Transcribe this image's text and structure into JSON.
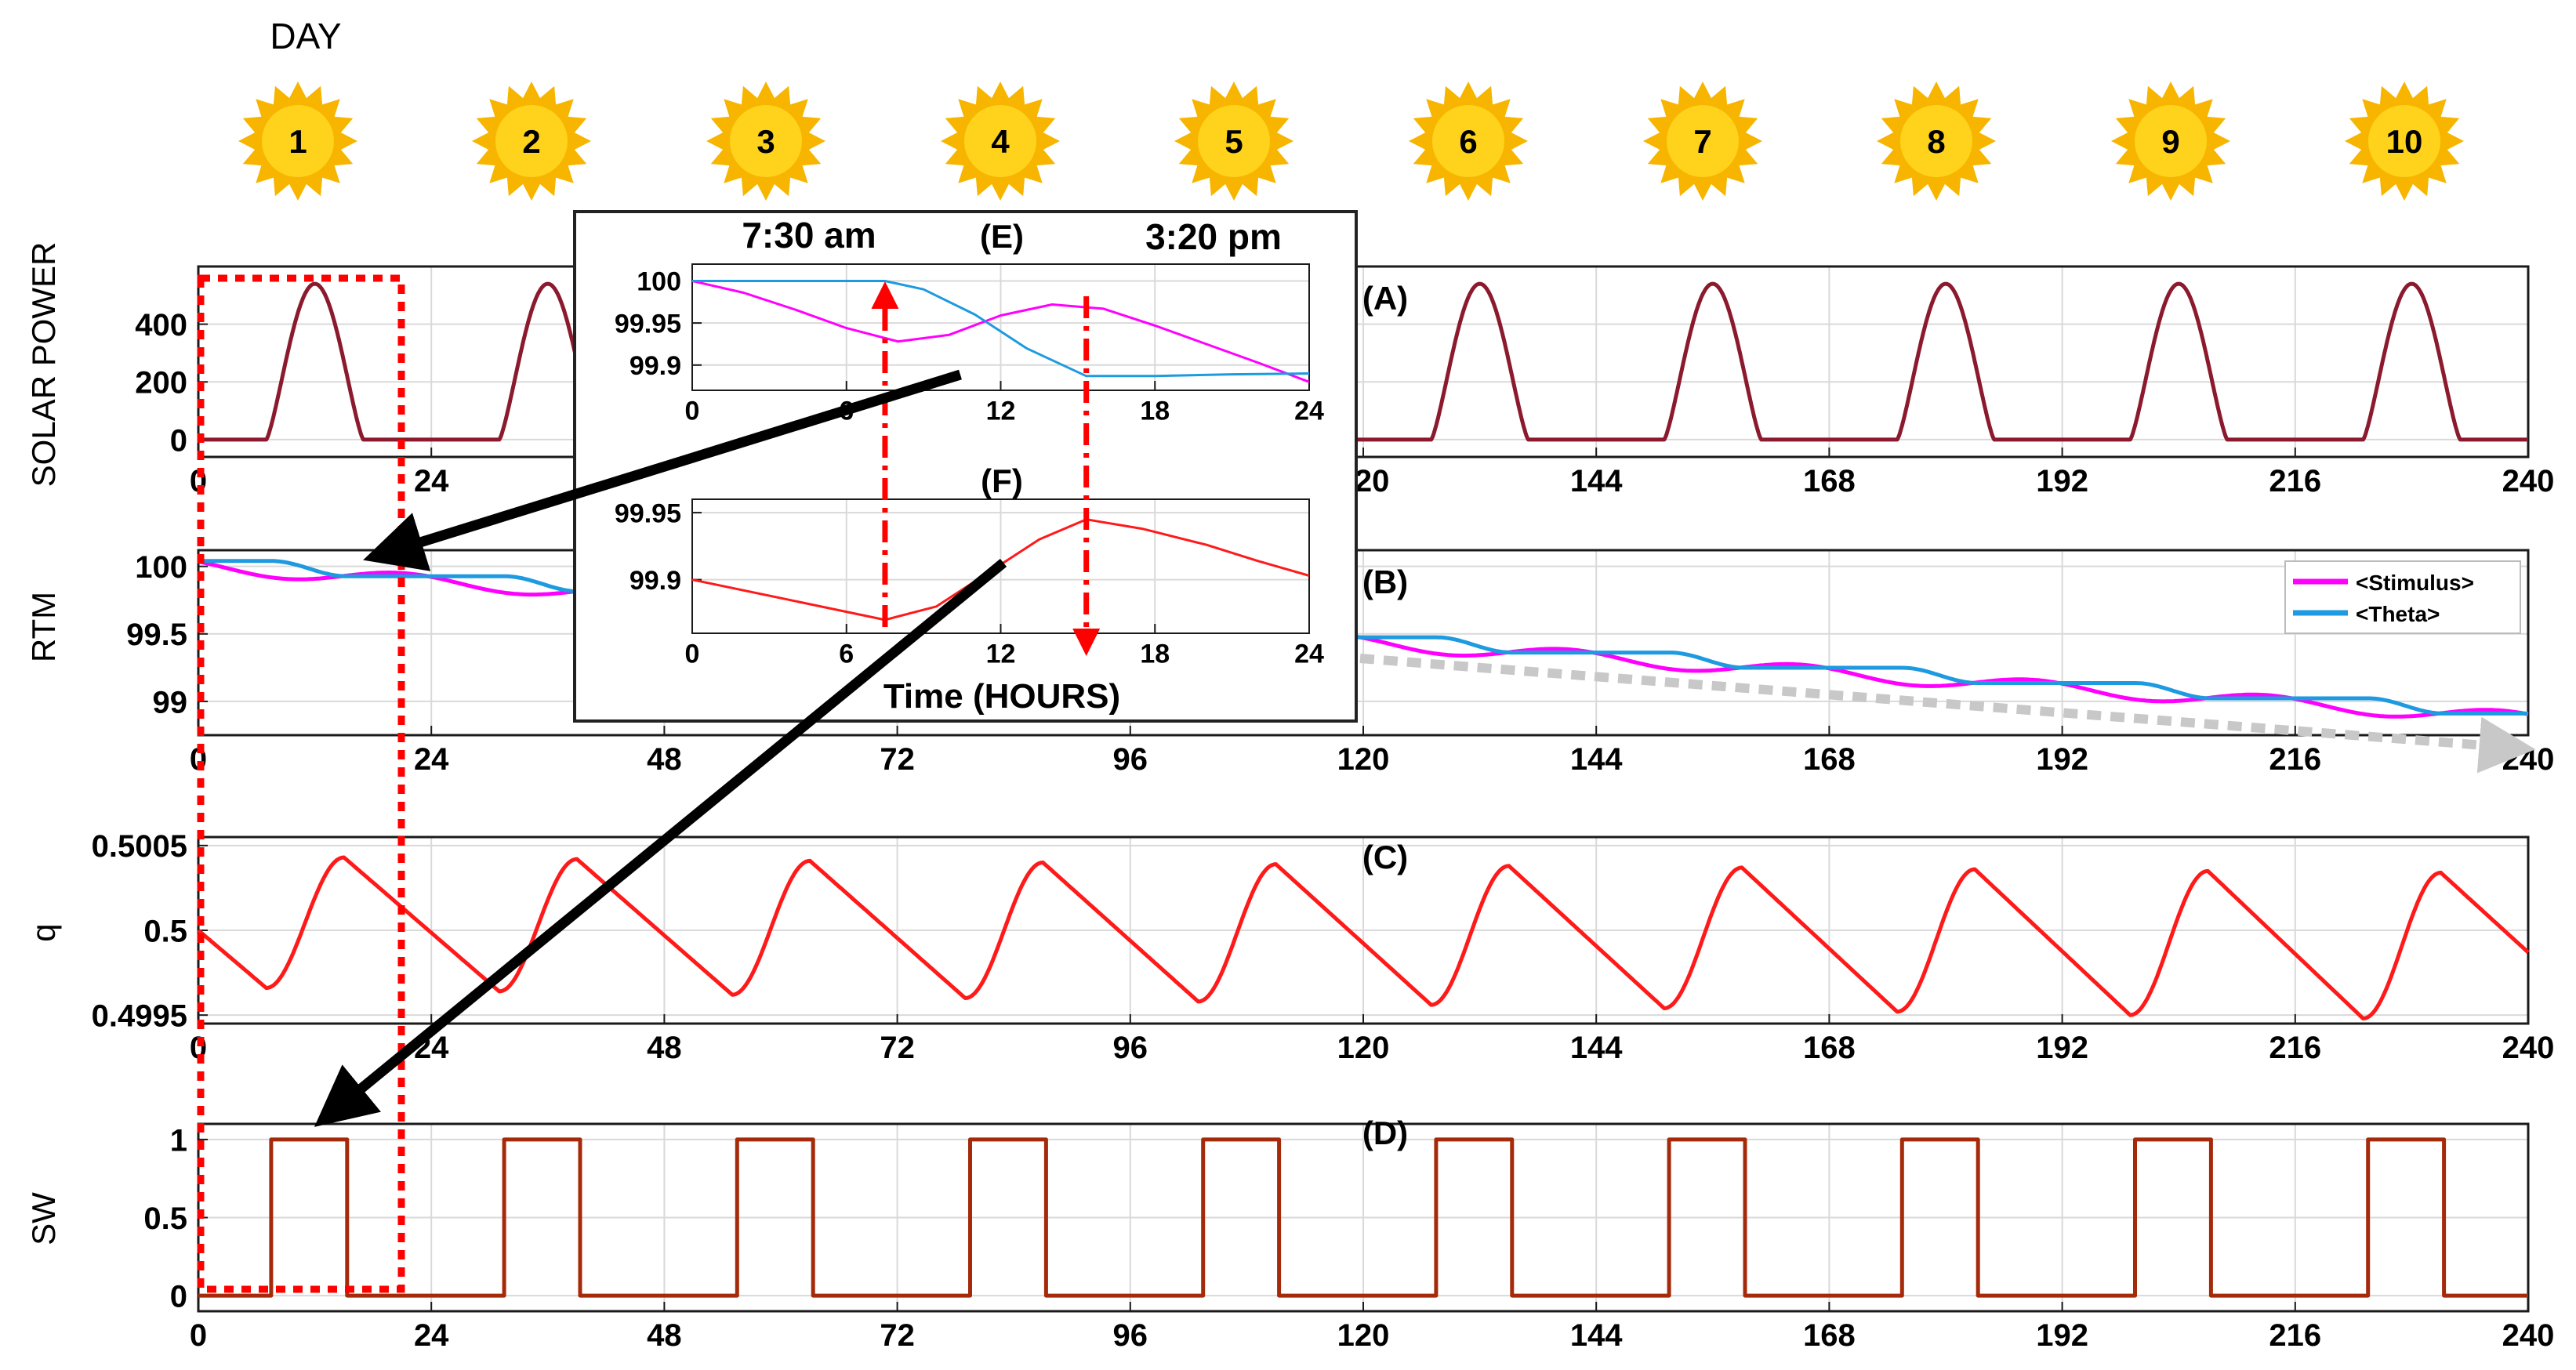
{
  "header": {
    "day_label": "DAY",
    "days": [
      "1",
      "2",
      "3",
      "4",
      "5",
      "6",
      "7",
      "8",
      "9",
      "10"
    ]
  },
  "colors": {
    "solar": "#8b1a2e",
    "stimulus": "#ff00ff",
    "theta": "#1e9ae0",
    "q": "#ff1a1a",
    "sw": "#a52a0a",
    "highlight": "#ff0000",
    "sun_outer": "#f7b500",
    "sun_inner": "#ffd21c",
    "arrow": "#000000",
    "trend": "#c8c8c8"
  },
  "chart_data": [
    {
      "id": "A",
      "type": "line",
      "label": "(A)",
      "ylabel": "SOLAR POWER",
      "xlim": [
        0,
        240
      ],
      "ylim": [
        -60,
        600
      ],
      "xticks": [
        0,
        24,
        48,
        72,
        96,
        120,
        144,
        168,
        192,
        216,
        240
      ],
      "yticks": [
        0,
        200,
        400
      ],
      "series": [
        {
          "shape": "daily bell pulse from 7 h to 17 h each day",
          "peak": 540,
          "baseline": 0
        }
      ]
    },
    {
      "id": "B",
      "type": "line",
      "label": "(B)",
      "ylabel": "RTM",
      "xlim": [
        0,
        240
      ],
      "ylim": [
        98.75,
        100.12
      ],
      "xticks": [
        0,
        24,
        48,
        72,
        96,
        120,
        144,
        168,
        192,
        216,
        240
      ],
      "yticks": [
        "99",
        "99.5",
        "100"
      ],
      "legend": {
        "placement": "right",
        "entries": [
          "<Stimulus>",
          "<Theta>"
        ]
      },
      "series": [
        {
          "name": "<Stimulus>",
          "start": 100.0,
          "end": 98.87,
          "daily_oscillation": 0.05,
          "min_hour": 9,
          "max_hour": 15
        },
        {
          "name": "<Theta>",
          "start": 100.0,
          "end": 98.87,
          "daily_step": "flat until 7:30, drop until 15:20"
        }
      ]
    },
    {
      "id": "C",
      "type": "line",
      "label": "(C)",
      "ylabel": "q",
      "xlim": [
        0,
        240
      ],
      "ylim": [
        0.49945,
        0.50055
      ],
      "xticks": [
        0,
        24,
        48,
        72,
        96,
        120,
        144,
        168,
        192,
        216,
        240
      ],
      "yticks": [
        "0.4995",
        "0.5",
        "0.5005"
      ],
      "series": [
        {
          "start": 0.5,
          "daily_minima": [
            0.49966,
            0.49964,
            0.49962,
            0.4996,
            0.49958,
            0.49956,
            0.49954,
            0.49952,
            0.4995,
            0.49948
          ],
          "daily_maxima": [
            0.50043,
            0.50042,
            0.50041,
            0.5004,
            0.50039,
            0.50038,
            0.50037,
            0.50036,
            0.50035,
            0.50034
          ],
          "min_hour": 7,
          "max_hour": 15,
          "end": 0.49987
        }
      ]
    },
    {
      "id": "D",
      "type": "line",
      "label": "(D)",
      "ylabel": "SW",
      "xlim": [
        0,
        240
      ],
      "ylim": [
        -0.1,
        1.1
      ],
      "xticks": [
        0,
        24,
        48,
        72,
        96,
        120,
        144,
        168,
        192,
        216,
        240
      ],
      "yticks": [
        "0",
        "0.5",
        "1"
      ],
      "series": [
        {
          "shape": "square pulse, 1 between 7.5 h and 15.33 h each day",
          "on_hour": 7.5,
          "off_hour": 15.33
        }
      ]
    },
    {
      "id": "E",
      "type": "line",
      "label": "(E)",
      "inset": true,
      "xlim": [
        0,
        24
      ],
      "ylim": [
        99.87,
        100.02
      ],
      "xticks": [
        0,
        6,
        12,
        18,
        24
      ],
      "yticks": [
        "99.9",
        "99.95",
        "100"
      ],
      "series": [
        {
          "name": "<Stimulus>",
          "x": [
            0,
            2,
            4,
            6,
            8,
            10,
            12,
            14,
            16,
            18,
            20,
            22,
            24
          ],
          "y": [
            100.0,
            99.986,
            99.966,
            99.944,
            99.928,
            99.936,
            99.959,
            99.972,
            99.967,
            99.947,
            99.925,
            99.903,
            99.88
          ]
        },
        {
          "name": "<Theta>",
          "x": [
            0,
            2,
            4,
            6,
            7.5,
            9,
            11,
            13,
            15.33,
            18,
            21,
            24
          ],
          "y": [
            100.0,
            100.0,
            100.0,
            100.0,
            100.0,
            99.99,
            99.96,
            99.92,
            99.887,
            99.887,
            99.889,
            99.89
          ]
        }
      ]
    },
    {
      "id": "F",
      "type": "line",
      "label": "(F)",
      "inset": true,
      "xlabel": "Time (HOURS)",
      "xlim": [
        0,
        24
      ],
      "ylim": [
        99.86,
        99.96
      ],
      "xticks": [
        0,
        6,
        12,
        18,
        24
      ],
      "yticks": [
        "99.9",
        "99.95"
      ],
      "series": [
        {
          "x": [
            0,
            3.75,
            7.5,
            9.5,
            11.5,
            13.5,
            15.33,
            17.5,
            20,
            22,
            24
          ],
          "y": [
            99.9,
            99.885,
            99.87,
            99.88,
            99.905,
            99.93,
            99.945,
            99.938,
            99.926,
            99.914,
            99.903
          ]
        }
      ]
    }
  ],
  "annotations": {
    "inset_time_left": "7:30 am",
    "inset_time_right": "3:20 pm"
  }
}
